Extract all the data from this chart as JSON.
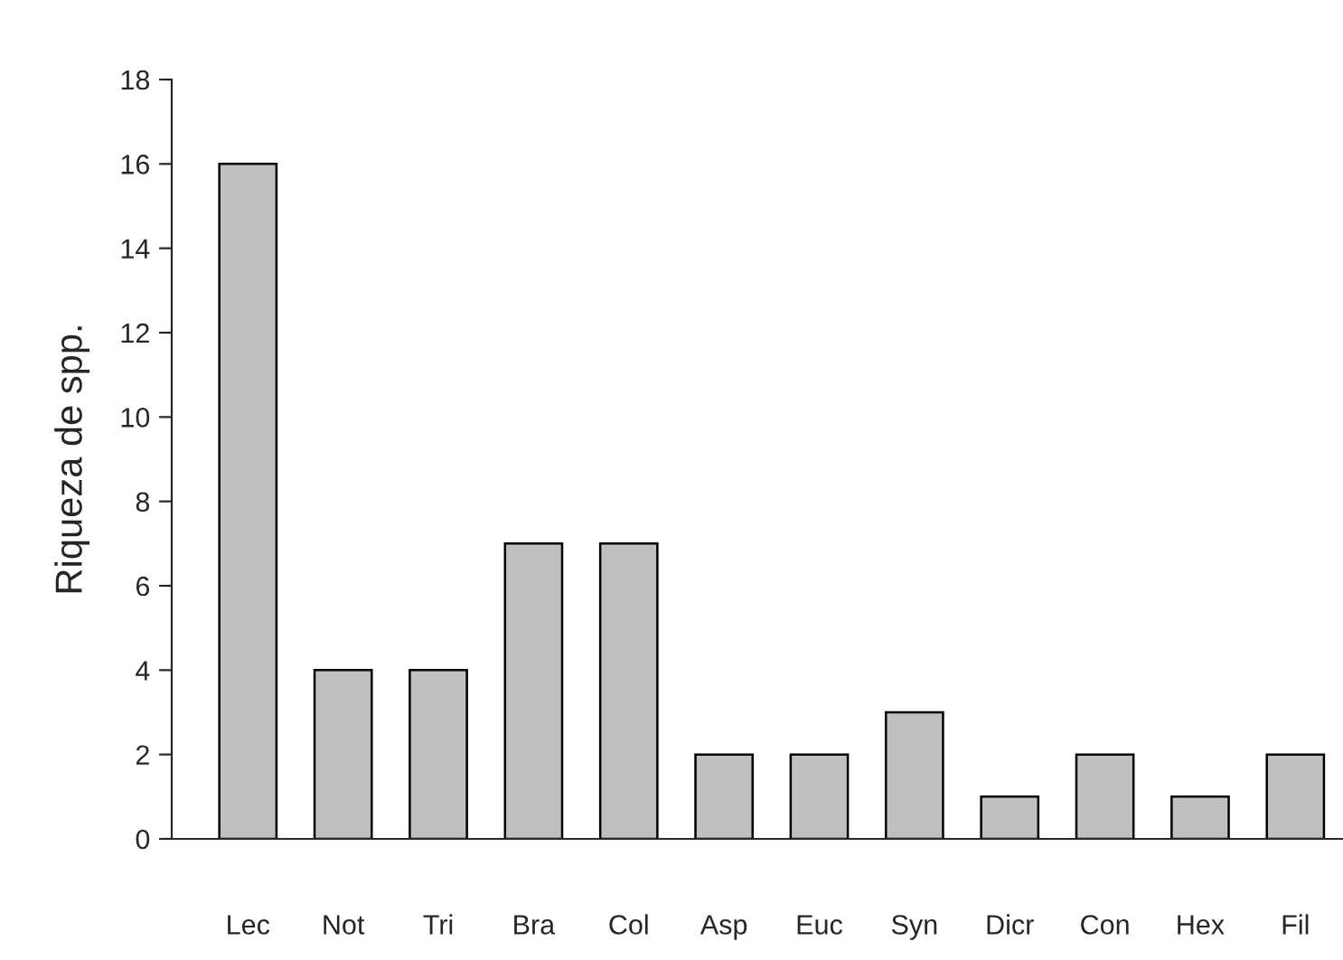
{
  "chart_data": {
    "type": "bar",
    "ylabel": "Riqueza de spp.",
    "categories": [
      "Lec",
      "Not",
      "Tri",
      "Bra",
      "Col",
      "Asp",
      "Euc",
      "Syn",
      "Dicr",
      "Con",
      "Hex",
      "Fil"
    ],
    "values": [
      16,
      4,
      4,
      7,
      7,
      2,
      2,
      3,
      1,
      2,
      1,
      2
    ],
    "color": "#c0c0c0",
    "ylim": [
      0,
      18
    ],
    "yticks": [
      0,
      2,
      4,
      6,
      8,
      10,
      12,
      14,
      16,
      18
    ],
    "grid": false,
    "legend": false
  }
}
